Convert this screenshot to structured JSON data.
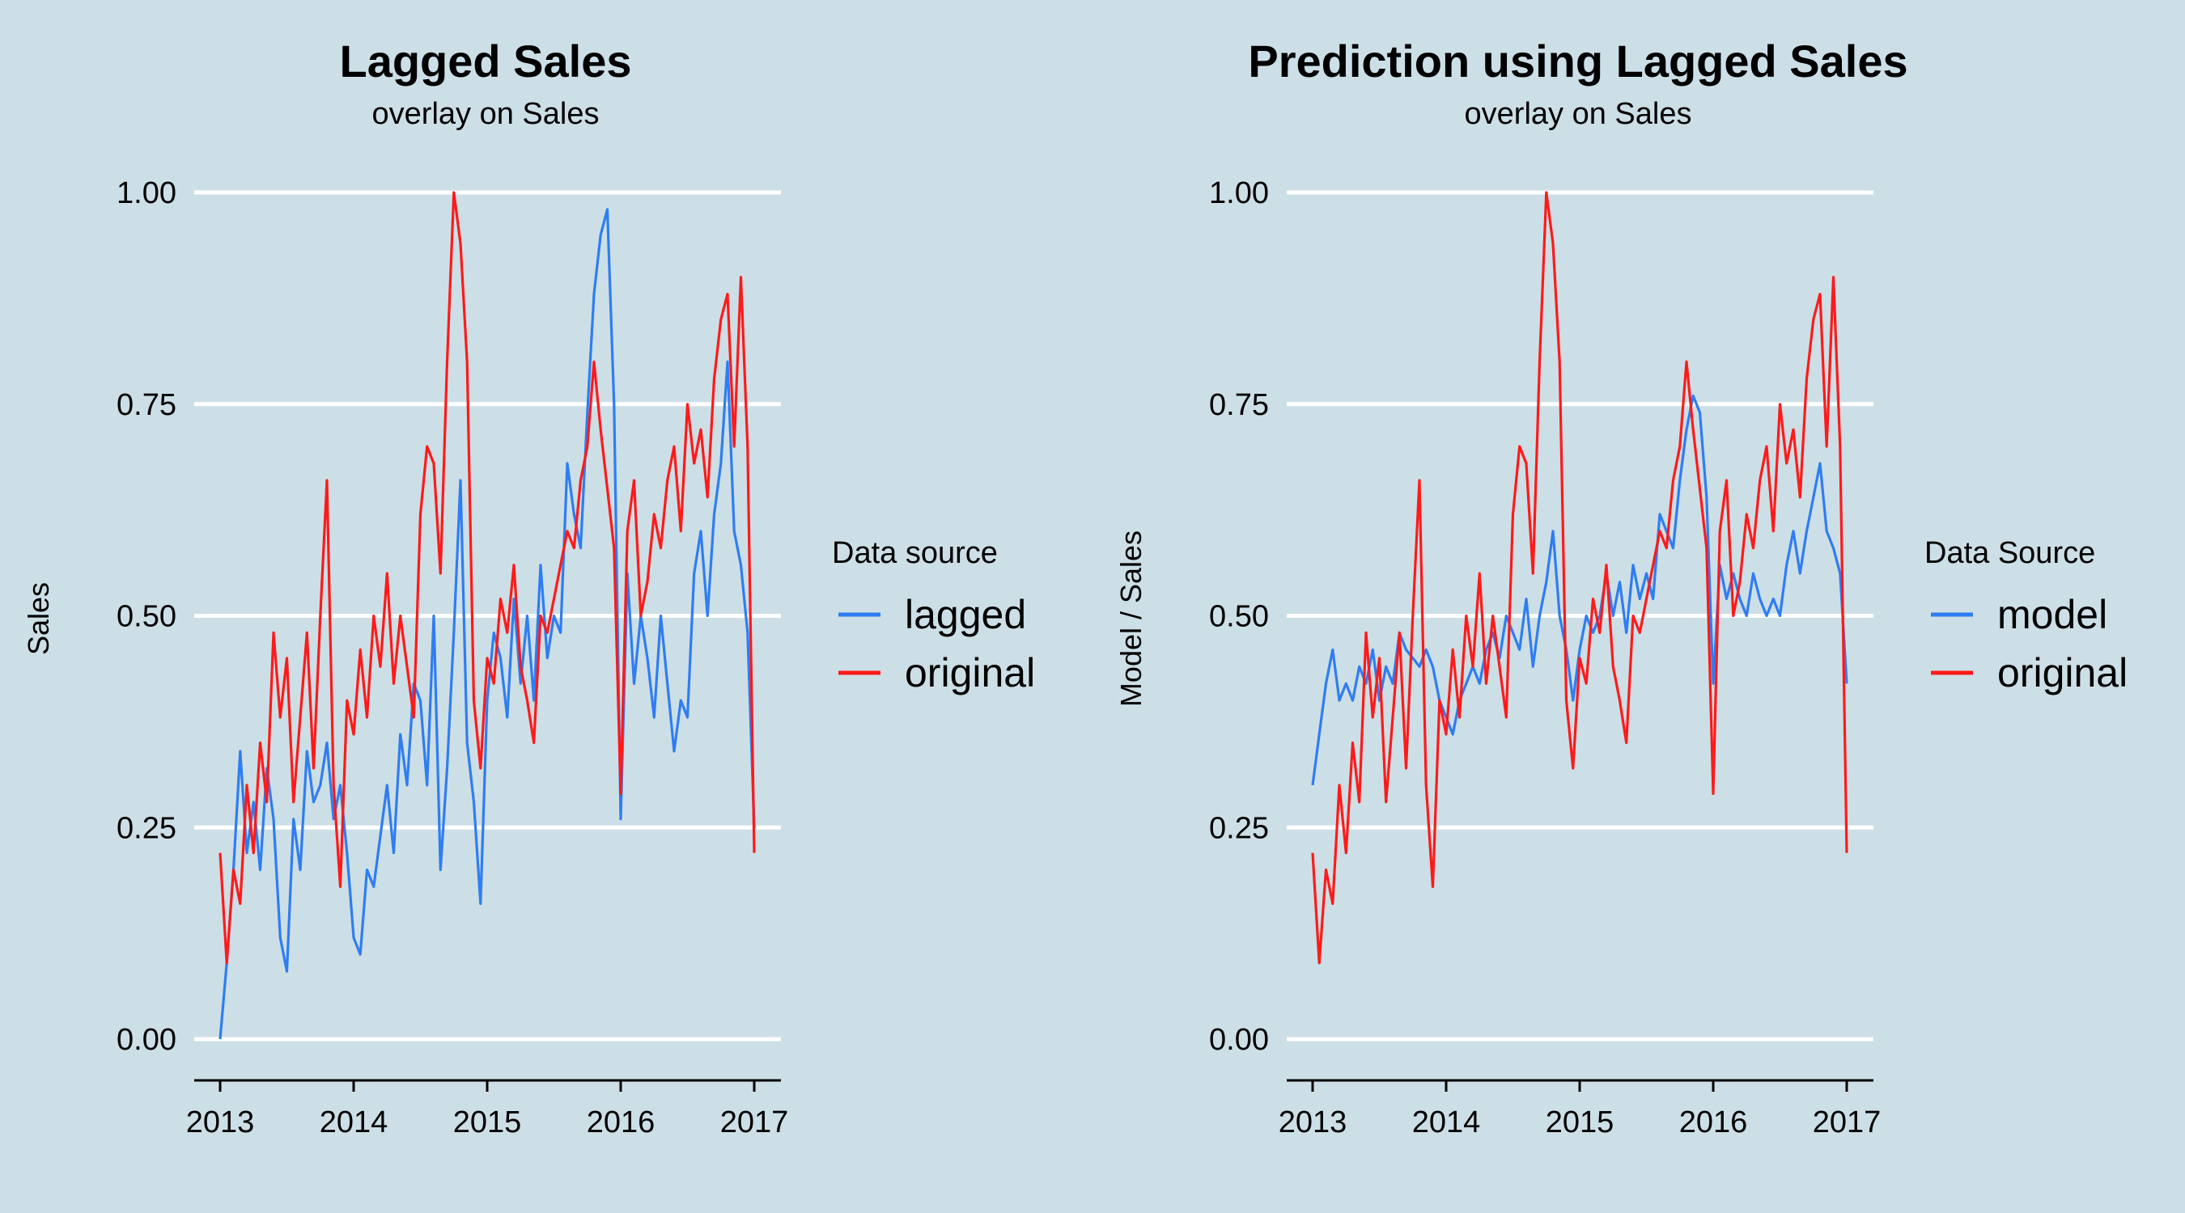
{
  "colors": {
    "blue": "#2f7df2",
    "red": "#ff1a1a",
    "background": "#cddfe6",
    "grid": "#ffffff"
  },
  "chart_data": [
    {
      "type": "line",
      "title": "Lagged Sales",
      "subtitle": "overlay on Sales",
      "xlabel": "",
      "ylabel": "Sales",
      "xlim": [
        2013,
        2017
      ],
      "ylim": [
        0,
        1
      ],
      "x_ticks": [
        2013,
        2014,
        2015,
        2016,
        2017
      ],
      "x_tick_labels": [
        "2013",
        "2014",
        "2015",
        "2016",
        "2017"
      ],
      "y_ticks": [
        0,
        0.25,
        0.5,
        0.75,
        1
      ],
      "y_tick_labels": [
        "0.00",
        "0.25",
        "0.50",
        "0.75",
        "1.00"
      ],
      "grid": true,
      "legend": {
        "title": "Data source",
        "position": "right"
      },
      "series": [
        {
          "name": "lagged",
          "color": "#2f7df2",
          "x": [
            2013.0,
            2013.05,
            2013.1,
            2013.15,
            2013.2,
            2013.25,
            2013.3,
            2013.35,
            2013.4,
            2013.45,
            2013.5,
            2013.55,
            2013.6,
            2013.65,
            2013.7,
            2013.75,
            2013.8,
            2013.85,
            2013.9,
            2013.95,
            2014.0,
            2014.05,
            2014.1,
            2014.15,
            2014.2,
            2014.25,
            2014.3,
            2014.35,
            2014.4,
            2014.45,
            2014.5,
            2014.55,
            2014.6,
            2014.65,
            2014.7,
            2014.75,
            2014.8,
            2014.85,
            2014.9,
            2014.95,
            2015.0,
            2015.05,
            2015.1,
            2015.15,
            2015.2,
            2015.25,
            2015.3,
            2015.35,
            2015.4,
            2015.45,
            2015.5,
            2015.55,
            2015.6,
            2015.65,
            2015.7,
            2015.75,
            2015.8,
            2015.85,
            2015.9,
            2015.95,
            2016.0,
            2016.05,
            2016.1,
            2016.15,
            2016.2,
            2016.25,
            2016.3,
            2016.35,
            2016.4,
            2016.45,
            2016.5,
            2016.55,
            2016.6,
            2016.65,
            2016.7,
            2016.75,
            2016.8,
            2016.85,
            2016.9,
            2016.95,
            2017.0
          ],
          "values": [
            0.0,
            0.09,
            0.2,
            0.34,
            0.22,
            0.28,
            0.2,
            0.32,
            0.26,
            0.12,
            0.08,
            0.26,
            0.2,
            0.34,
            0.28,
            0.3,
            0.35,
            0.26,
            0.3,
            0.22,
            0.12,
            0.1,
            0.2,
            0.18,
            0.24,
            0.3,
            0.22,
            0.36,
            0.3,
            0.42,
            0.4,
            0.3,
            0.5,
            0.2,
            0.32,
            0.48,
            0.66,
            0.35,
            0.28,
            0.16,
            0.4,
            0.48,
            0.45,
            0.38,
            0.52,
            0.42,
            0.5,
            0.4,
            0.56,
            0.45,
            0.5,
            0.48,
            0.68,
            0.62,
            0.58,
            0.74,
            0.88,
            0.95,
            0.98,
            0.75,
            0.26,
            0.55,
            0.42,
            0.5,
            0.45,
            0.38,
            0.5,
            0.42,
            0.34,
            0.4,
            0.38,
            0.55,
            0.6,
            0.5,
            0.62,
            0.68,
            0.8,
            0.6,
            0.56,
            0.48,
            0.25
          ]
        },
        {
          "name": "original",
          "color": "#ff1a1a",
          "x": [
            2013.0,
            2013.05,
            2013.1,
            2013.15,
            2013.2,
            2013.25,
            2013.3,
            2013.35,
            2013.4,
            2013.45,
            2013.5,
            2013.55,
            2013.6,
            2013.65,
            2013.7,
            2013.75,
            2013.8,
            2013.85,
            2013.9,
            2013.95,
            2014.0,
            2014.05,
            2014.1,
            2014.15,
            2014.2,
            2014.25,
            2014.3,
            2014.35,
            2014.4,
            2014.45,
            2014.5,
            2014.55,
            2014.6,
            2014.65,
            2014.7,
            2014.75,
            2014.8,
            2014.85,
            2014.9,
            2014.95,
            2015.0,
            2015.05,
            2015.1,
            2015.15,
            2015.2,
            2015.25,
            2015.3,
            2015.35,
            2015.4,
            2015.45,
            2015.5,
            2015.55,
            2015.6,
            2015.65,
            2015.7,
            2015.75,
            2015.8,
            2015.85,
            2015.9,
            2015.95,
            2016.0,
            2016.05,
            2016.1,
            2016.15,
            2016.2,
            2016.25,
            2016.3,
            2016.35,
            2016.4,
            2016.45,
            2016.5,
            2016.55,
            2016.6,
            2016.65,
            2016.7,
            2016.75,
            2016.8,
            2016.85,
            2016.9,
            2016.95,
            2017.0
          ],
          "values": [
            0.22,
            0.09,
            0.2,
            0.16,
            0.3,
            0.22,
            0.35,
            0.28,
            0.48,
            0.38,
            0.45,
            0.28,
            0.38,
            0.48,
            0.32,
            0.5,
            0.66,
            0.3,
            0.18,
            0.4,
            0.36,
            0.46,
            0.38,
            0.5,
            0.44,
            0.55,
            0.42,
            0.5,
            0.44,
            0.38,
            0.62,
            0.7,
            0.68,
            0.55,
            0.8,
            1.0,
            0.94,
            0.8,
            0.4,
            0.32,
            0.45,
            0.42,
            0.52,
            0.48,
            0.56,
            0.44,
            0.4,
            0.35,
            0.5,
            0.48,
            0.52,
            0.56,
            0.6,
            0.58,
            0.66,
            0.7,
            0.8,
            0.72,
            0.65,
            0.58,
            0.29,
            0.6,
            0.66,
            0.5,
            0.54,
            0.62,
            0.58,
            0.66,
            0.7,
            0.6,
            0.75,
            0.68,
            0.72,
            0.64,
            0.78,
            0.85,
            0.88,
            0.7,
            0.9,
            0.7,
            0.22
          ]
        }
      ]
    },
    {
      "type": "line",
      "title": "Prediction using Lagged Sales",
      "subtitle": "overlay on Sales",
      "xlabel": "",
      "ylabel": "Model / Sales",
      "xlim": [
        2013,
        2017
      ],
      "ylim": [
        0,
        1
      ],
      "x_ticks": [
        2013,
        2014,
        2015,
        2016,
        2017
      ],
      "x_tick_labels": [
        "2013",
        "2014",
        "2015",
        "2016",
        "2017"
      ],
      "y_ticks": [
        0,
        0.25,
        0.5,
        0.75,
        1
      ],
      "y_tick_labels": [
        "0.00",
        "0.25",
        "0.50",
        "0.75",
        "1.00"
      ],
      "grid": true,
      "legend": {
        "title": "Data Source",
        "position": "right"
      },
      "series": [
        {
          "name": "model",
          "color": "#2f7df2",
          "x": [
            2013.0,
            2013.05,
            2013.1,
            2013.15,
            2013.2,
            2013.25,
            2013.3,
            2013.35,
            2013.4,
            2013.45,
            2013.5,
            2013.55,
            2013.6,
            2013.65,
            2013.7,
            2013.75,
            2013.8,
            2013.85,
            2013.9,
            2013.95,
            2014.0,
            2014.05,
            2014.1,
            2014.15,
            2014.2,
            2014.25,
            2014.3,
            2014.35,
            2014.4,
            2014.45,
            2014.5,
            2014.55,
            2014.6,
            2014.65,
            2014.7,
            2014.75,
            2014.8,
            2014.85,
            2014.9,
            2014.95,
            2015.0,
            2015.05,
            2015.1,
            2015.15,
            2015.2,
            2015.25,
            2015.3,
            2015.35,
            2015.4,
            2015.45,
            2015.5,
            2015.55,
            2015.6,
            2015.65,
            2015.7,
            2015.75,
            2015.8,
            2015.85,
            2015.9,
            2015.95,
            2016.0,
            2016.05,
            2016.1,
            2016.15,
            2016.2,
            2016.25,
            2016.3,
            2016.35,
            2016.4,
            2016.45,
            2016.5,
            2016.55,
            2016.6,
            2016.65,
            2016.7,
            2016.75,
            2016.8,
            2016.85,
            2016.9,
            2016.95,
            2017.0
          ],
          "values": [
            0.3,
            0.36,
            0.42,
            0.46,
            0.4,
            0.42,
            0.4,
            0.44,
            0.42,
            0.46,
            0.4,
            0.44,
            0.42,
            0.48,
            0.46,
            0.45,
            0.44,
            0.46,
            0.44,
            0.4,
            0.38,
            0.36,
            0.4,
            0.42,
            0.44,
            0.42,
            0.46,
            0.48,
            0.45,
            0.5,
            0.48,
            0.46,
            0.52,
            0.44,
            0.5,
            0.54,
            0.6,
            0.5,
            0.46,
            0.4,
            0.46,
            0.5,
            0.48,
            0.5,
            0.55,
            0.5,
            0.54,
            0.48,
            0.56,
            0.52,
            0.55,
            0.52,
            0.62,
            0.6,
            0.58,
            0.66,
            0.72,
            0.76,
            0.74,
            0.64,
            0.42,
            0.56,
            0.52,
            0.55,
            0.52,
            0.5,
            0.55,
            0.52,
            0.5,
            0.52,
            0.5,
            0.56,
            0.6,
            0.55,
            0.6,
            0.64,
            0.68,
            0.6,
            0.58,
            0.55,
            0.42
          ]
        },
        {
          "name": "original",
          "color": "#ff1a1a",
          "x": [
            2013.0,
            2013.05,
            2013.1,
            2013.15,
            2013.2,
            2013.25,
            2013.3,
            2013.35,
            2013.4,
            2013.45,
            2013.5,
            2013.55,
            2013.6,
            2013.65,
            2013.7,
            2013.75,
            2013.8,
            2013.85,
            2013.9,
            2013.95,
            2014.0,
            2014.05,
            2014.1,
            2014.15,
            2014.2,
            2014.25,
            2014.3,
            2014.35,
            2014.4,
            2014.45,
            2014.5,
            2014.55,
            2014.6,
            2014.65,
            2014.7,
            2014.75,
            2014.8,
            2014.85,
            2014.9,
            2014.95,
            2015.0,
            2015.05,
            2015.1,
            2015.15,
            2015.2,
            2015.25,
            2015.3,
            2015.35,
            2015.4,
            2015.45,
            2015.5,
            2015.55,
            2015.6,
            2015.65,
            2015.7,
            2015.75,
            2015.8,
            2015.85,
            2015.9,
            2015.95,
            2016.0,
            2016.05,
            2016.1,
            2016.15,
            2016.2,
            2016.25,
            2016.3,
            2016.35,
            2016.4,
            2016.45,
            2016.5,
            2016.55,
            2016.6,
            2016.65,
            2016.7,
            2016.75,
            2016.8,
            2016.85,
            2016.9,
            2016.95,
            2017.0
          ],
          "values": [
            0.22,
            0.09,
            0.2,
            0.16,
            0.3,
            0.22,
            0.35,
            0.28,
            0.48,
            0.38,
            0.45,
            0.28,
            0.38,
            0.48,
            0.32,
            0.5,
            0.66,
            0.3,
            0.18,
            0.4,
            0.36,
            0.46,
            0.38,
            0.5,
            0.44,
            0.55,
            0.42,
            0.5,
            0.44,
            0.38,
            0.62,
            0.7,
            0.68,
            0.55,
            0.8,
            1.0,
            0.94,
            0.8,
            0.4,
            0.32,
            0.45,
            0.42,
            0.52,
            0.48,
            0.56,
            0.44,
            0.4,
            0.35,
            0.5,
            0.48,
            0.52,
            0.56,
            0.6,
            0.58,
            0.66,
            0.7,
            0.8,
            0.72,
            0.65,
            0.58,
            0.29,
            0.6,
            0.66,
            0.5,
            0.54,
            0.62,
            0.58,
            0.66,
            0.7,
            0.6,
            0.75,
            0.68,
            0.72,
            0.64,
            0.78,
            0.85,
            0.88,
            0.7,
            0.9,
            0.7,
            0.22
          ]
        }
      ]
    }
  ]
}
